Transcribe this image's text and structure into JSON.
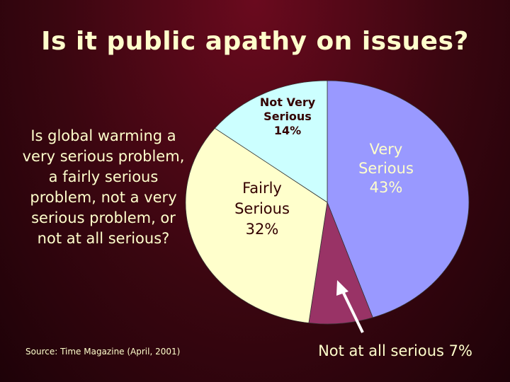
{
  "slide": {
    "title": "Is it public apathy on issues?",
    "question": "Is global warming a very serious problem, a fairly serious problem, not a very serious problem, or not at all serious?",
    "source": "Source: Time Magazine (April, 2001)"
  },
  "chart_data": {
    "type": "pie",
    "start": "12 o'clock",
    "direction": "clockwise",
    "slices": [
      {
        "name": "Very Serious",
        "value": 43,
        "label_lines": [
          "Very",
          "Serious",
          "43%"
        ],
        "color": "#9999ff"
      },
      {
        "name": "Not at all serious",
        "value": 7,
        "label_lines": [
          "Not at all serious 7%"
        ],
        "color": "#993366"
      },
      {
        "name": "Fairly Serious",
        "value": 32,
        "label_lines": [
          "Fairly",
          "Serious",
          "32%"
        ],
        "color": "#ffffcc"
      },
      {
        "name": "Not Very Serious",
        "value": 14,
        "label_lines": [
          "Not Very",
          "Serious",
          "14%"
        ],
        "color": "#ccffff"
      }
    ]
  }
}
